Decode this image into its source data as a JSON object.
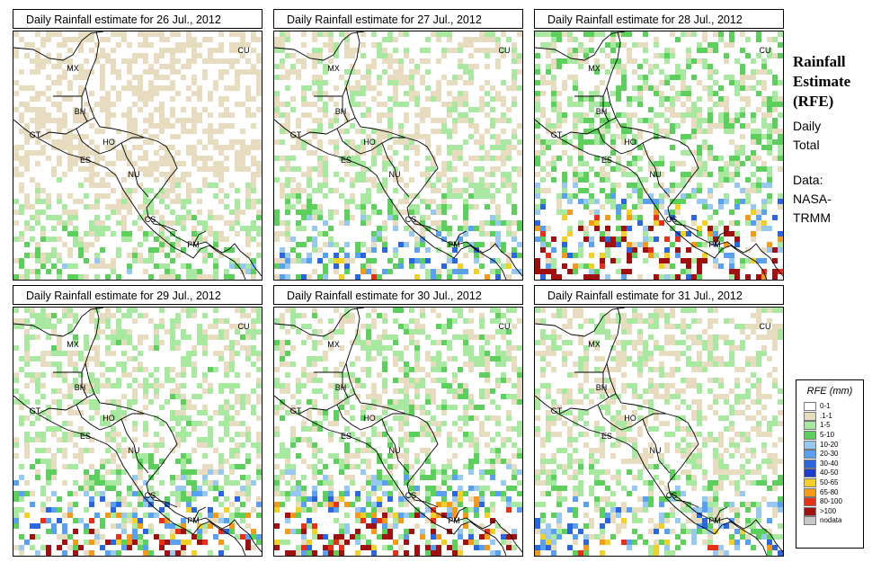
{
  "panels": [
    {
      "title": "Daily Rainfall estimate for  26 Jul., 2012",
      "intensity": 0.6,
      "seed": 11
    },
    {
      "title": "Daily Rainfall estimate for  27 Jul., 2012",
      "intensity": 1.0,
      "seed": 23
    },
    {
      "title": "Daily Rainfall estimate for  28 Jul., 2012",
      "intensity": 1.9,
      "seed": 37
    },
    {
      "title": "Daily Rainfall estimate for  29 Jul., 2012",
      "intensity": 1.4,
      "seed": 41
    },
    {
      "title": "Daily Rainfall estimate for  30 Jul., 2012",
      "intensity": 1.6,
      "seed": 53
    },
    {
      "title": "Daily Rainfall estimate for  31 Jul., 2012",
      "intensity": 1.1,
      "seed": 67
    }
  ],
  "country_labels": [
    "CU",
    "MX",
    "BH",
    "GT",
    "HO",
    "ES",
    "NU",
    "CS",
    "PM"
  ],
  "side": {
    "title_line1": "Rainfall",
    "title_line2": "Estimate",
    "title_line3": "(RFE)",
    "daily_line1": "Daily",
    "daily_line2": "Total",
    "data_line1": "Data:",
    "data_line2": "NASA-",
    "data_line3": "TRMM"
  },
  "legend": {
    "title": "RFE (mm)",
    "items": [
      {
        "label": "0-1",
        "color": "#ffffff"
      },
      {
        "label": ".1-1",
        "color": "#e8dcc0"
      },
      {
        "label": "1-5",
        "color": "#a8e8a0"
      },
      {
        "label": "5-10",
        "color": "#5ccf5c"
      },
      {
        "label": "10-20",
        "color": "#96c8f0"
      },
      {
        "label": "20-30",
        "color": "#5aa0f0"
      },
      {
        "label": "30-40",
        "color": "#2a66e0"
      },
      {
        "label": "40-50",
        "color": "#1e3ccc"
      },
      {
        "label": "50-65",
        "color": "#f2d02a"
      },
      {
        "label": "65-80",
        "color": "#f49a1a"
      },
      {
        "label": "80-100",
        "color": "#e83018"
      },
      {
        "label": ">100",
        "color": "#a01010"
      },
      {
        "label": "nodata",
        "color": "#c8c8c8"
      }
    ]
  }
}
